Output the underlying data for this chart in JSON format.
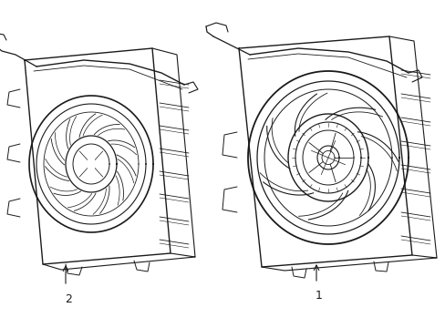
{
  "background_color": "#ffffff",
  "line_color": "#1a1a1a",
  "fig_width": 4.89,
  "fig_height": 3.6,
  "dpi": 100,
  "label1": "1",
  "label2": "2"
}
